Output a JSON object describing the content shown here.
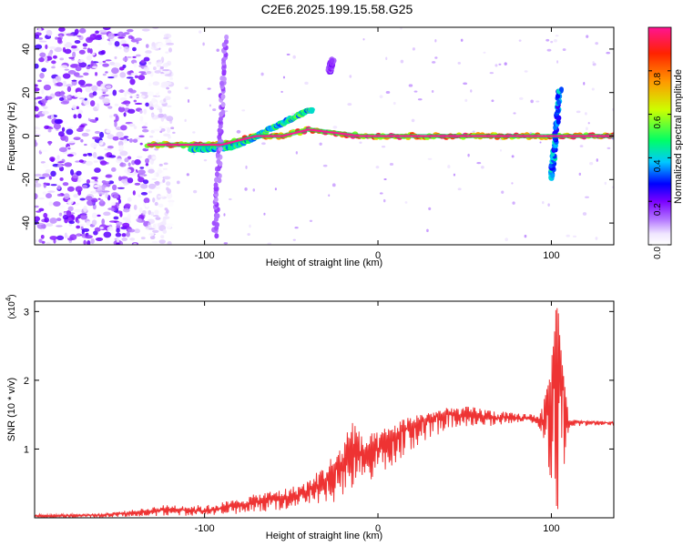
{
  "title": "C2E6.2025.199.15.58.G25",
  "chart_data": [
    {
      "type": "heatmap",
      "xlabel": "Height of straight line (km)",
      "ylabel": "Frequency (Hz)",
      "xlim": [
        -198,
        136
      ],
      "ylim": [
        -50,
        50
      ],
      "xticks": [
        -100,
        0,
        100
      ],
      "yticks": [
        -40,
        -20,
        0,
        20,
        40
      ],
      "colorbar": {
        "label": "Normalized spectral amplitude",
        "range": [
          0,
          1
        ],
        "ticks": [
          "0.0",
          "0.2",
          "0.4",
          "0.6",
          "0.8"
        ],
        "colors": [
          "#ffffff",
          "#f0e6ff",
          "#7a00ff",
          "#0000ff",
          "#00c8ff",
          "#00ff66",
          "#ccff00",
          "#ff9900",
          "#ff2200",
          "#ff1493"
        ]
      },
      "noise_region": {
        "x_from": -198,
        "x_to": -133,
        "level": 0.2
      },
      "features": [
        {
          "name": "main line",
          "x": [
            -133,
            -110,
            -90,
            -70,
            -55,
            -40,
            -30,
            -20,
            -10,
            0,
            10,
            40,
            80,
            95,
            100,
            136
          ],
          "y": [
            -4,
            -4,
            -4,
            0,
            0,
            3,
            2,
            1,
            0,
            0,
            0,
            0,
            0,
            0,
            0,
            0
          ],
          "amplitude": 0.9
        },
        {
          "name": "upper branch",
          "x": [
            -108,
            -95,
            -85,
            -75,
            -65,
            -55,
            -45,
            -38
          ],
          "y": [
            -6,
            -6,
            -5,
            -2,
            2,
            6,
            10,
            12
          ],
          "amplitude": 0.5
        },
        {
          "name": "streak",
          "x": [
            -94,
            -92,
            -90,
            -88
          ],
          "y": [
            -45,
            -15,
            15,
            45
          ],
          "amplitude": 0.15
        },
        {
          "name": "burst",
          "x": [
            100,
            101,
            102,
            103,
            104,
            105
          ],
          "y": [
            -20,
            -10,
            0,
            5,
            12,
            22
          ],
          "amplitude": 0.4
        },
        {
          "name": "blob",
          "x": [
            -28,
            -26
          ],
          "y": [
            30,
            35
          ],
          "amplitude": 0.2
        }
      ]
    },
    {
      "type": "line",
      "xlabel": "Height of straight line (km)",
      "ylabel": "SNR (10 * v/v)",
      "multiplier": "(x10",
      "multiplier_exp": "4",
      "xlim": [
        -198,
        136
      ],
      "ylim": [
        0,
        3.15
      ],
      "xticks": [
        -100,
        0,
        100
      ],
      "yticks": [
        1,
        2,
        3
      ],
      "series": [
        {
          "color": "#ee3333",
          "x": [
            -198,
            -160,
            -140,
            -120,
            -100,
            -80,
            -70,
            -60,
            -50,
            -40,
            -30,
            -20,
            -15,
            -10,
            0,
            10,
            20,
            30,
            40,
            50,
            60,
            70,
            80,
            90,
            95,
            100,
            103,
            105,
            107,
            110,
            115,
            136
          ],
          "y": [
            0.03,
            0.04,
            0.08,
            0.12,
            0.1,
            0.18,
            0.25,
            0.28,
            0.3,
            0.4,
            0.55,
            0.8,
            1.1,
            0.9,
            1.0,
            1.2,
            1.35,
            1.45,
            1.5,
            1.5,
            1.48,
            1.45,
            1.45,
            1.45,
            1.4,
            2.0,
            3.1,
            2.6,
            1.8,
            1.4,
            1.4,
            1.38
          ],
          "envelope": {
            "x": [
              -198,
              -160,
              -140,
              -120,
              -100,
              -80,
              -70,
              -60,
              -50,
              -40,
              -30,
              -20,
              -15,
              -10,
              0,
              10,
              20,
              30,
              40,
              50,
              60,
              70,
              80,
              90,
              95,
              100,
              103,
              105,
              107,
              110,
              115,
              136
            ],
            "lo": [
              0.0,
              0.0,
              0.02,
              0.03,
              0.03,
              0.05,
              0.08,
              0.1,
              0.12,
              0.2,
              0.2,
              0.2,
              0.3,
              0.5,
              0.6,
              0.8,
              1.0,
              1.15,
              1.25,
              1.3,
              1.32,
              1.35,
              1.38,
              1.38,
              1.2,
              0.4,
              0.1,
              0.05,
              0.6,
              1.3,
              1.33,
              1.35
            ],
            "hi": [
              0.05,
              0.06,
              0.12,
              0.2,
              0.18,
              0.28,
              0.35,
              0.4,
              0.45,
              0.55,
              0.8,
              1.1,
              1.55,
              1.2,
              1.25,
              1.4,
              1.5,
              1.55,
              1.6,
              1.62,
              1.6,
              1.55,
              1.52,
              1.52,
              1.6,
              2.3,
              3.15,
              2.9,
              2.2,
              1.45,
              1.42,
              1.4
            ]
          }
        }
      ]
    }
  ]
}
